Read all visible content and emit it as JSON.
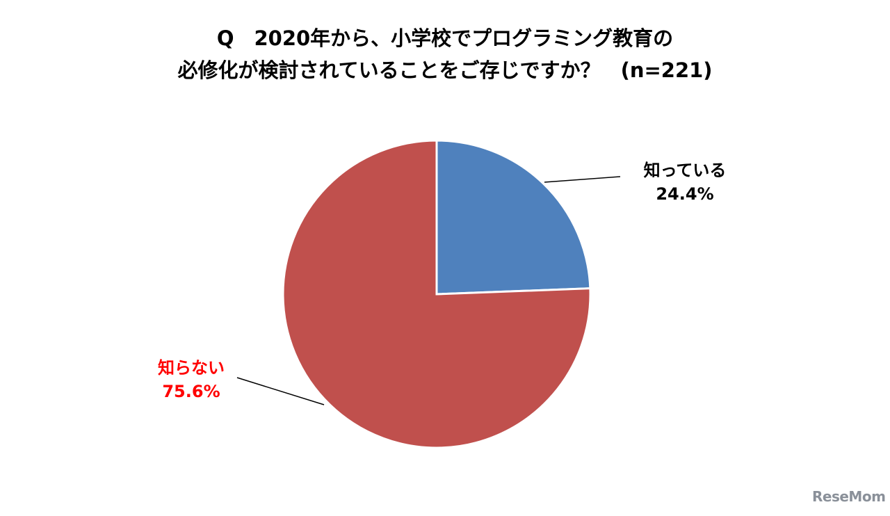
{
  "chart_data": {
    "type": "pie",
    "title_lines": [
      "Q　2020年から、小学校でプログラミング教育の",
      "必修化が検討されていることをご存じですか？　(n=221)"
    ],
    "slices": [
      {
        "label": "知っている",
        "value": 24.4,
        "value_label": "24.4%",
        "color": "#4f81bd",
        "label_color": "#000000"
      },
      {
        "label": "知らない",
        "value": 75.6,
        "value_label": "75.6%",
        "color": "#c0504d",
        "label_color": "#ff0000"
      }
    ],
    "start_angle": "12 o'clock",
    "direction": "clockwise"
  },
  "watermark": "ReseMom"
}
